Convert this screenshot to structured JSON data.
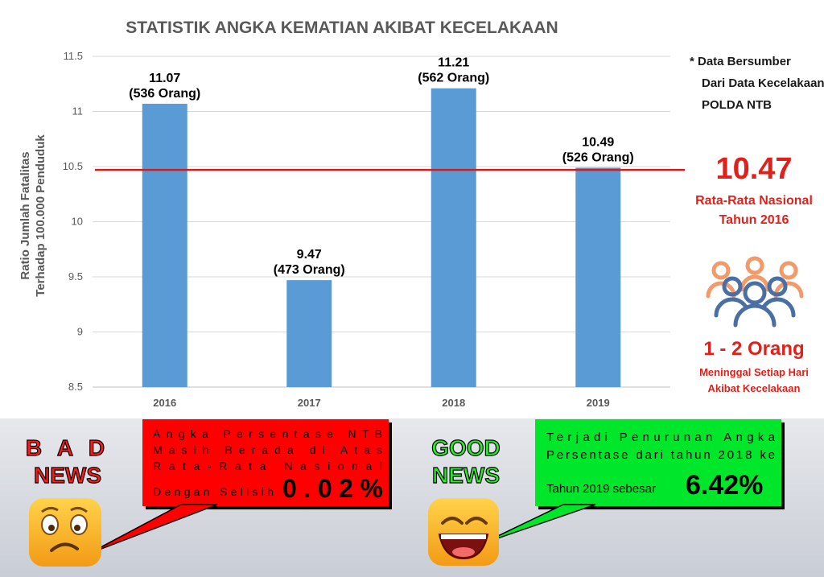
{
  "chart_data": {
    "type": "bar",
    "title": "STATISTIK ANGKA KEMATIAN AKIBAT KECELAKAAN",
    "ylabel_lines": [
      "Ratio Jumlah Fatalitas",
      "Terhadap 100.000 Penduduk"
    ],
    "xlabel": "",
    "categories": [
      "2016",
      "2017",
      "2018",
      "2019"
    ],
    "values": [
      11.07,
      9.47,
      11.21,
      10.49
    ],
    "value_labels": [
      "11.07",
      "9.47",
      "11.21",
      "10.49"
    ],
    "count_labels": [
      "(536 Orang)",
      "(473 Orang)",
      "(562 Orang)",
      "(526 Orang)"
    ],
    "ylim": [
      8.5,
      11.5
    ],
    "yticks": [
      "8.5",
      "9",
      "9.5",
      "10",
      "10.5",
      "11",
      "11.5"
    ],
    "reference_line": {
      "value": 10.47,
      "color": "#cc1f1f"
    },
    "bar_color": "#5b9bd5",
    "grid": true
  },
  "side": {
    "source_lines": [
      "* Data Bersumber",
      "Dari Data Kecelakaan",
      "POLDA NTB"
    ],
    "national_value": "10.47",
    "national_label_lines": [
      "Rata-Rata Nasional",
      "Tahun 2016"
    ],
    "people_icon": "people-group-icon",
    "deaths_value": "1 - 2 Orang",
    "deaths_label_lines": [
      "Meninggal Setiap Hari",
      "Akibat Kecelakaan"
    ],
    "accent_color": "#e0211b"
  },
  "bad_news": {
    "title_lines": [
      "B A D",
      "NEWS"
    ],
    "text_lines": [
      "Angka Persentase NTB",
      "Masih Berada di Atas",
      "Rata-Rata Nasional"
    ],
    "selisih_label": "Dengan Selisih",
    "selisih_value": "0.02%",
    "box_color": "#ff0000",
    "icon": "confused-face-icon"
  },
  "good_news": {
    "title_lines": [
      "GOOD",
      "NEWS"
    ],
    "text_lines": [
      "Terjadi Penurunan Angka",
      "Persentase dari tahun 2018 ke"
    ],
    "decline_label": "Tahun 2019 sebesar",
    "decline_value": "6.42%",
    "box_color": "#00e62a",
    "icon": "laughing-face-icon"
  }
}
